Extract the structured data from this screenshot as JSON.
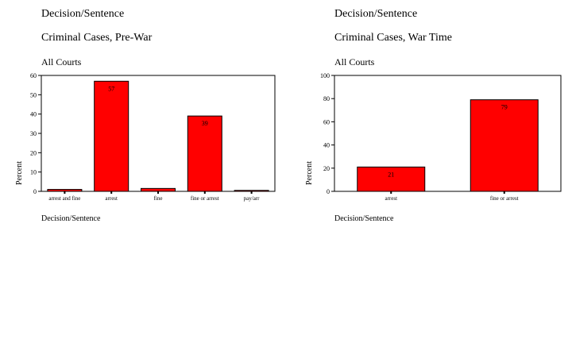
{
  "colors": {
    "bar_fill": "#ff0000",
    "bar_stroke": "#000000",
    "axis": "#000000"
  },
  "chart_data": [
    {
      "type": "bar",
      "title": "Decision/Sentence",
      "subtitle": "Criminal Cases, Pre-War",
      "note": "All Courts",
      "xlabel": "Decision/Sentence",
      "ylabel": "Percent",
      "categories": [
        "arrest and fine",
        "arrest",
        "fine",
        "fine or arrest",
        "pay/arr"
      ],
      "values": [
        1,
        57,
        1.5,
        39,
        0.5
      ],
      "data_labels": [
        "",
        "57",
        "",
        "39",
        ""
      ],
      "ylim": [
        0,
        60
      ],
      "yticks": [
        0,
        10,
        20,
        30,
        40,
        50,
        60
      ],
      "grid": false
    },
    {
      "type": "bar",
      "title": "Decision/Sentence",
      "subtitle": "Criminal Cases, War Time",
      "note": "All Courts",
      "xlabel": "Decision/Sentence",
      "ylabel": "Percent",
      "categories": [
        "arrest",
        "fine or arrest"
      ],
      "values": [
        21,
        79
      ],
      "data_labels": [
        "21",
        "79"
      ],
      "ylim": [
        0,
        100
      ],
      "yticks": [
        0,
        20,
        40,
        60,
        80,
        100
      ],
      "grid": false
    }
  ]
}
